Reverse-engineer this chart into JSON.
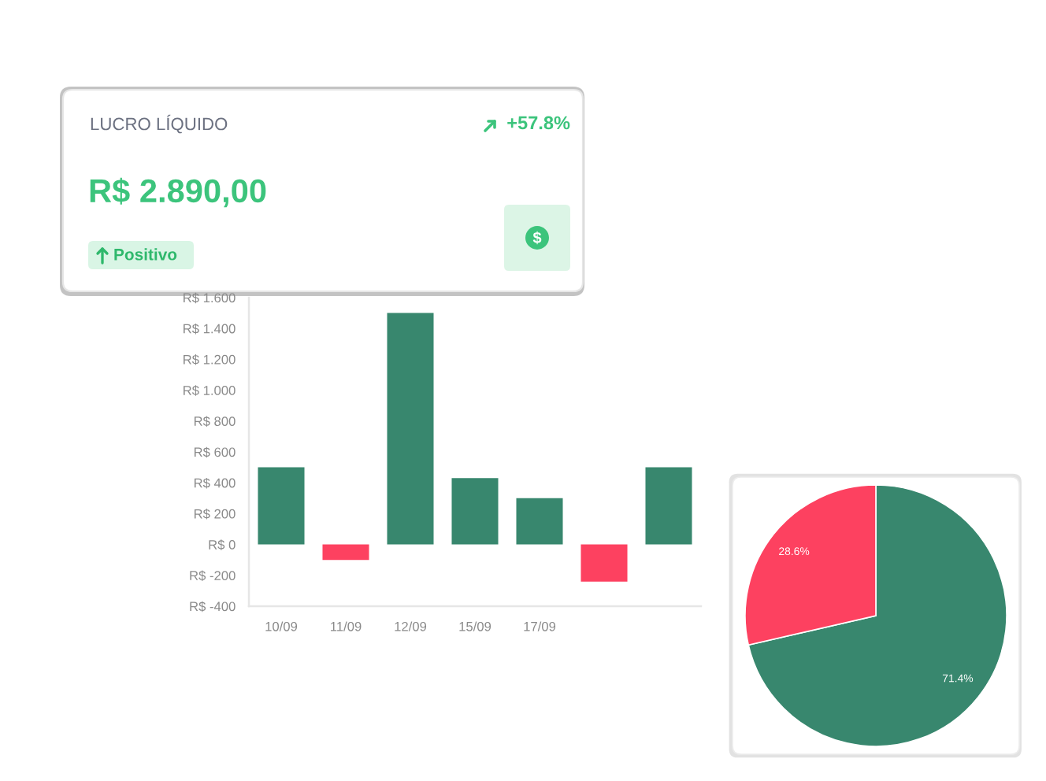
{
  "chart_data": [
    {
      "type": "other",
      "title": "LUCRO LÍQUIDO",
      "annotations": [
        "+57.8%",
        "R$ 2.890,00",
        "Positivo"
      ]
    },
    {
      "type": "bar",
      "categories": [
        "10/09",
        "11/09",
        "12/09",
        "15/09",
        "17/09",
        null,
        null
      ],
      "values": [
        500,
        -100,
        1500,
        430,
        300,
        -240,
        500
      ],
      "colors": [
        "#38876e",
        "#fd4160",
        "#38876e",
        "#38876e",
        "#38876e",
        "#fd4160",
        "#38876e"
      ],
      "ylim": [
        -400,
        1600
      ],
      "yticks": [
        {
          "value": -400,
          "label": "R$ -400"
        },
        {
          "value": -200,
          "label": "R$ -200"
        },
        {
          "value": 0,
          "label": "R$ 0"
        },
        {
          "value": 200,
          "label": "R$ 200"
        },
        {
          "value": 400,
          "label": "R$ 400"
        },
        {
          "value": 600,
          "label": "R$ 600"
        },
        {
          "value": 800,
          "label": "R$ 800"
        },
        {
          "value": 1000,
          "label": "R$ 1.000"
        },
        {
          "value": 1200,
          "label": "R$ 1.200"
        },
        {
          "value": 1400,
          "label": "R$ 1.400"
        },
        {
          "value": 1600,
          "label": "R$ 1.600"
        }
      ]
    },
    {
      "type": "pie",
      "categories": [
        null,
        null
      ],
      "values": [
        71.4,
        28.6
      ],
      "colors": [
        "#38876e",
        "#fd4160"
      ],
      "value_labels": [
        "71.4%",
        "28.6%"
      ]
    }
  ]
}
